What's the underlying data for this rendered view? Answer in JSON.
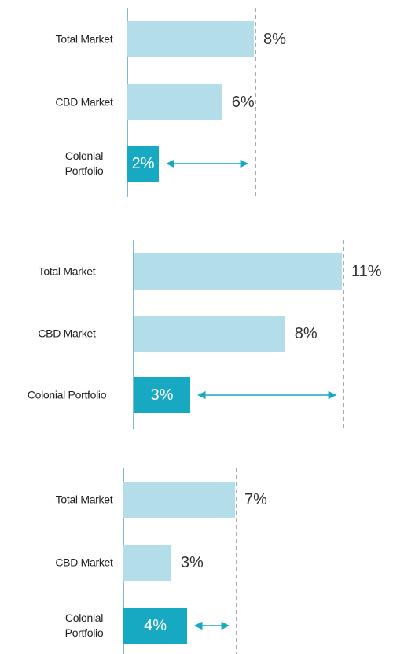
{
  "chart_data": [
    {
      "type": "bar",
      "categories": [
        "Total Market",
        "CBD Market",
        "Colonial Portfolio"
      ],
      "values": [
        8,
        6,
        2
      ],
      "value_labels": [
        "8%",
        "6%",
        "2%"
      ],
      "colors": [
        "#b3dde8",
        "#b3dde8",
        "#17a9c2"
      ]
    },
    {
      "type": "bar",
      "categories": [
        "Total Market",
        "CBD Market",
        "Colonial Portfolio"
      ],
      "values": [
        11,
        8,
        3
      ],
      "value_labels": [
        "11%",
        "8%",
        "3%"
      ],
      "colors": [
        "#b3dde8",
        "#b3dde8",
        "#17a9c2"
      ]
    },
    {
      "type": "bar",
      "categories": [
        "Total Market",
        "CBD Market",
        "Colonial Portfolio"
      ],
      "values": [
        7,
        3,
        4
      ],
      "value_labels": [
        "7%",
        "3%",
        "4%"
      ],
      "colors": [
        "#b3dde8",
        "#b3dde8",
        "#17a9c2"
      ]
    }
  ]
}
